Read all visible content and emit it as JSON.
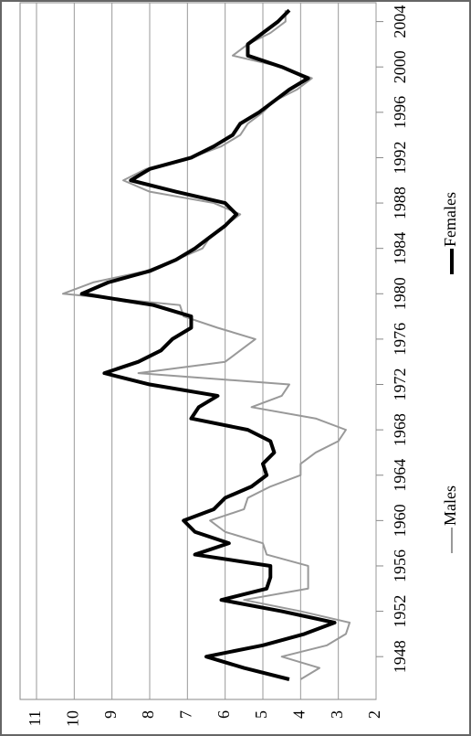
{
  "chart_data": {
    "type": "line",
    "x": [
      1946,
      1947,
      1948,
      1949,
      1950,
      1951,
      1952,
      1953,
      1954,
      1955,
      1956,
      1957,
      1958,
      1959,
      1960,
      1961,
      1962,
      1963,
      1964,
      1965,
      1966,
      1967,
      1968,
      1969,
      1970,
      1971,
      1972,
      1973,
      1974,
      1975,
      1976,
      1977,
      1978,
      1979,
      1980,
      1981,
      1982,
      1983,
      1984,
      1985,
      1986,
      1987,
      1988,
      1989,
      1990,
      1991,
      1992,
      1993,
      1994,
      1995,
      1996,
      1997,
      1998,
      1999,
      2000,
      2001,
      2002,
      2003,
      2004,
      2005
    ],
    "series": [
      {
        "name": "Males",
        "color": "#999999",
        "values": [
          4.0,
          3.5,
          4.5,
          3.3,
          2.8,
          2.7,
          4.0,
          5.5,
          3.8,
          3.8,
          3.8,
          4.9,
          5.0,
          6.0,
          6.4,
          5.5,
          5.4,
          4.8,
          4.0,
          4.0,
          3.6,
          3.0,
          2.8,
          3.6,
          5.3,
          4.5,
          4.3,
          8.3,
          6.0,
          5.6,
          5.2,
          6.2,
          7.1,
          7.2,
          10.3,
          9.5,
          8.1,
          7.3,
          6.6,
          6.4,
          6.0,
          5.6,
          6.3,
          8.0,
          8.7,
          8.1,
          6.9,
          6.1,
          5.6,
          5.4,
          5.0,
          4.7,
          4.1,
          3.7,
          4.5,
          5.8,
          5.4,
          4.8,
          4.4,
          4.4
        ]
      },
      {
        "name": "Females",
        "color": "#000000",
        "values": [
          4.3,
          5.5,
          6.5,
          5.0,
          3.9,
          3.1,
          4.5,
          6.1,
          4.9,
          4.8,
          4.8,
          6.8,
          5.9,
          6.8,
          7.1,
          6.3,
          6.0,
          5.3,
          4.9,
          5.0,
          4.7,
          4.8,
          5.4,
          6.9,
          6.7,
          6.2,
          8.0,
          9.2,
          8.3,
          7.7,
          7.4,
          6.9,
          6.9,
          7.9,
          9.8,
          9.1,
          8.0,
          7.3,
          6.8,
          6.4,
          6.0,
          5.7,
          6.0,
          7.3,
          8.5,
          8.0,
          6.9,
          6.3,
          5.8,
          5.6,
          5.1,
          4.7,
          4.3,
          3.8,
          4.5,
          5.4,
          5.4,
          5.0,
          4.6,
          4.3
        ]
      }
    ],
    "xlim": [
      1946,
      2005.5
    ],
    "xticks": [
      1948,
      1952,
      1956,
      1960,
      1964,
      1968,
      1972,
      1976,
      1980,
      1984,
      1988,
      1992,
      1996,
      2000,
      2004
    ],
    "ylim": [
      2,
      11
    ],
    "yticks": [
      2,
      3,
      4,
      5,
      6,
      7,
      8,
      9,
      10,
      11
    ],
    "grid": true
  }
}
